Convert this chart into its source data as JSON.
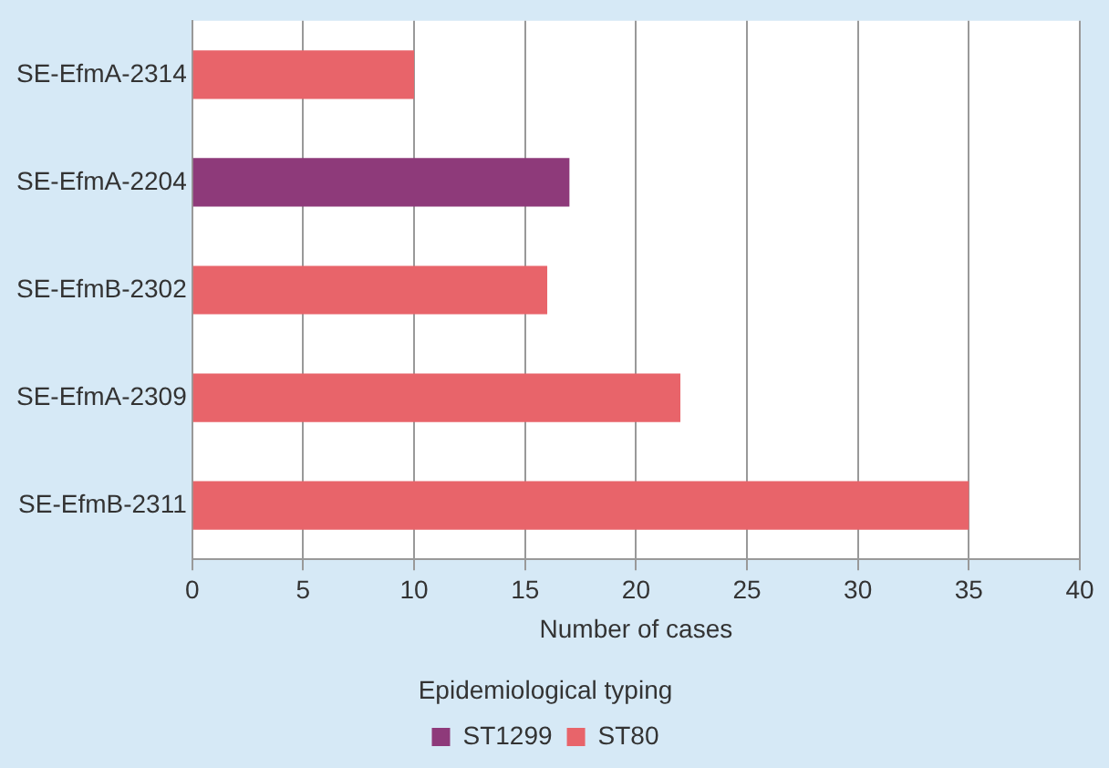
{
  "chart_data": {
    "type": "bar",
    "orientation": "horizontal",
    "categories": [
      "SE-EfmA-2314",
      "SE-EfmA-2204",
      "SE-EfmB-2302",
      "SE-EfmA-2309",
      "SE-EfmB-2311"
    ],
    "series": [
      {
        "name": "ST1299",
        "color": "#8e3a7a",
        "values": [
          null,
          17,
          null,
          null,
          null
        ]
      },
      {
        "name": "ST80",
        "color": "#e8646a",
        "values": [
          10,
          null,
          16,
          22,
          35
        ]
      }
    ],
    "xlabel": "Number of cases",
    "legend_title": "Epidemiological typing",
    "legend": "bottom",
    "grid": "x",
    "xlim": [
      0,
      40
    ],
    "xticks": [
      0,
      5,
      10,
      15,
      20,
      25,
      30,
      35,
      40
    ]
  }
}
